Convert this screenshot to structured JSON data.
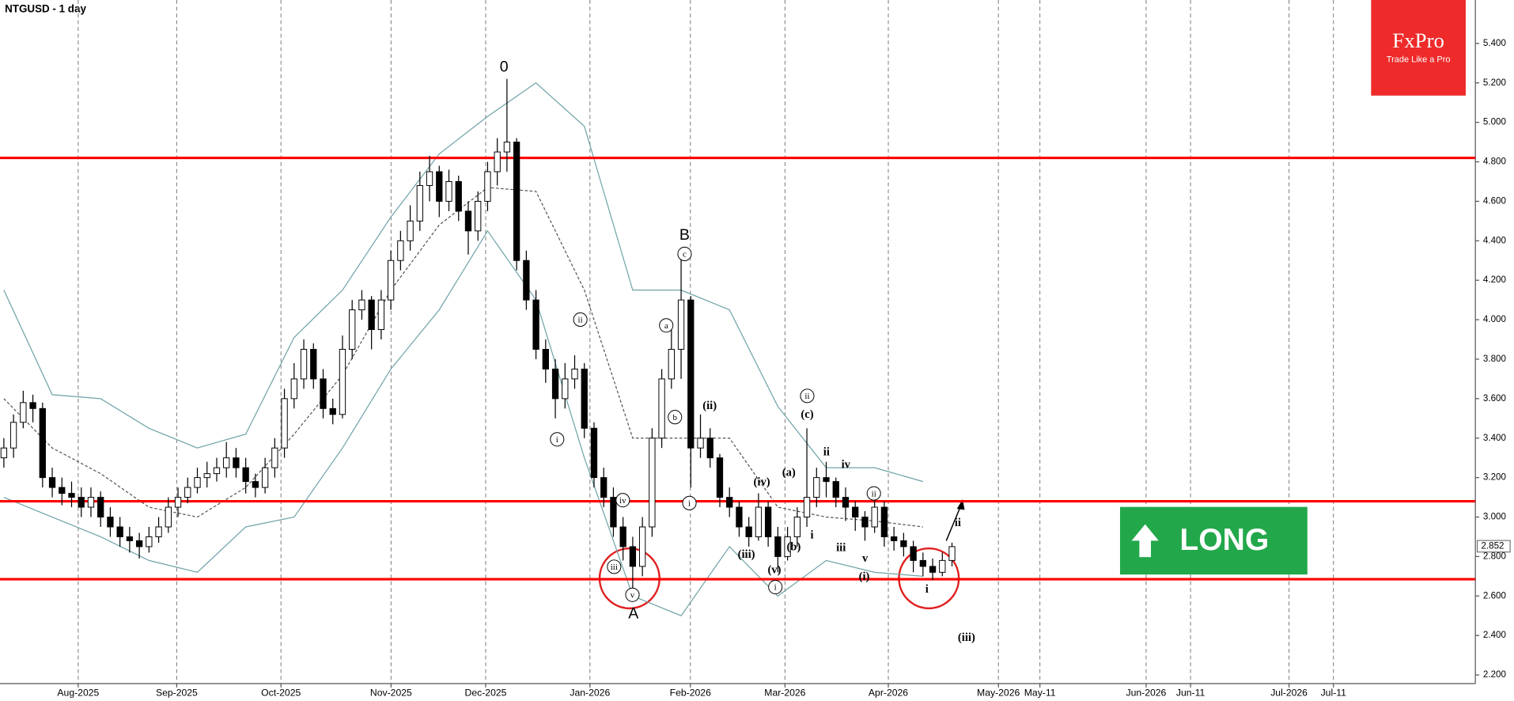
{
  "chart_data": {
    "type": "candlestick",
    "title": "NTGUSD - 1 day",
    "ylim": [
      2.156,
      5.62
    ],
    "yticks": [
      {
        "value": 2.2,
        "label": "2.200"
      },
      {
        "value": 2.4,
        "label": "2.400"
      },
      {
        "value": 2.6,
        "label": "2.600"
      },
      {
        "value": 2.8,
        "label": "2.800"
      },
      {
        "value": 3.0,
        "label": "3.000"
      },
      {
        "value": 3.2,
        "label": "3.200"
      },
      {
        "value": 3.4,
        "label": "3.400"
      },
      {
        "value": 3.6,
        "label": "3.600"
      },
      {
        "value": 3.8,
        "label": "3.800"
      },
      {
        "value": 4.0,
        "label": "4.000"
      },
      {
        "value": 4.2,
        "label": "4.200"
      },
      {
        "value": 4.4,
        "label": "4.400"
      },
      {
        "value": 4.6,
        "label": "4.600"
      },
      {
        "value": 4.8,
        "label": "4.800"
      },
      {
        "value": 5.0,
        "label": "5.000"
      },
      {
        "value": 5.2,
        "label": "5.200"
      },
      {
        "value": 5.4,
        "label": "5.400"
      }
    ],
    "xticks": [
      "Aug-2025",
      "Sep-2025",
      "Oct-2025",
      "Nov-2025",
      "Dec-2025",
      "Jan-2026",
      "Feb-2026",
      "Mar-2026",
      "Apr-2026",
      "May-2026",
      "May-11",
      "Jun-2026",
      "Jun-11",
      "Jul-2026",
      "Jul-11"
    ],
    "up_color": "#ffffff",
    "down_color": "#000000",
    "ohlc": [
      [
        3.3,
        3.4,
        3.25,
        3.35
      ],
      [
        3.35,
        3.52,
        3.3,
        3.48
      ],
      [
        3.48,
        3.64,
        3.45,
        3.58
      ],
      [
        3.58,
        3.62,
        3.48,
        3.55
      ],
      [
        3.55,
        3.58,
        3.15,
        3.2
      ],
      [
        3.2,
        3.25,
        3.1,
        3.15
      ],
      [
        3.15,
        3.2,
        3.06,
        3.12
      ],
      [
        3.12,
        3.18,
        3.05,
        3.1
      ],
      [
        3.1,
        3.15,
        3.0,
        3.05
      ],
      [
        3.05,
        3.15,
        3.0,
        3.1
      ],
      [
        3.1,
        3.13,
        2.95,
        3.0
      ],
      [
        3.0,
        3.05,
        2.9,
        2.95
      ],
      [
        2.95,
        3.0,
        2.85,
        2.9
      ],
      [
        2.9,
        2.95,
        2.82,
        2.88
      ],
      [
        2.88,
        2.92,
        2.79,
        2.85
      ],
      [
        2.85,
        2.95,
        2.82,
        2.9
      ],
      [
        2.9,
        3.0,
        2.87,
        2.95
      ],
      [
        2.95,
        3.1,
        2.92,
        3.05
      ],
      [
        3.05,
        3.15,
        3.0,
        3.1
      ],
      [
        3.1,
        3.2,
        3.07,
        3.15
      ],
      [
        3.15,
        3.25,
        3.12,
        3.2
      ],
      [
        3.2,
        3.28,
        3.15,
        3.22
      ],
      [
        3.22,
        3.3,
        3.18,
        3.25
      ],
      [
        3.25,
        3.38,
        3.2,
        3.3
      ],
      [
        3.3,
        3.35,
        3.2,
        3.25
      ],
      [
        3.25,
        3.3,
        3.12,
        3.18
      ],
      [
        3.18,
        3.22,
        3.1,
        3.15
      ],
      [
        3.15,
        3.3,
        3.12,
        3.25
      ],
      [
        3.25,
        3.4,
        3.2,
        3.35
      ],
      [
        3.35,
        3.65,
        3.3,
        3.6
      ],
      [
        3.6,
        3.78,
        3.55,
        3.7
      ],
      [
        3.7,
        3.9,
        3.65,
        3.85
      ],
      [
        3.85,
        3.88,
        3.65,
        3.7
      ],
      [
        3.7,
        3.75,
        3.5,
        3.55
      ],
      [
        3.55,
        3.6,
        3.47,
        3.52
      ],
      [
        3.52,
        3.92,
        3.5,
        3.85
      ],
      [
        3.85,
        4.1,
        3.8,
        4.05
      ],
      [
        4.05,
        4.15,
        4.0,
        4.1
      ],
      [
        4.1,
        4.12,
        3.85,
        3.95
      ],
      [
        3.95,
        4.15,
        3.9,
        4.1
      ],
      [
        4.1,
        4.35,
        4.05,
        4.3
      ],
      [
        4.3,
        4.45,
        4.25,
        4.4
      ],
      [
        4.4,
        4.58,
        4.35,
        4.5
      ],
      [
        4.5,
        4.75,
        4.45,
        4.68
      ],
      [
        4.68,
        4.83,
        4.6,
        4.75
      ],
      [
        4.75,
        4.78,
        4.52,
        4.6
      ],
      [
        4.6,
        4.76,
        4.55,
        4.7
      ],
      [
        4.7,
        4.73,
        4.5,
        4.55
      ],
      [
        4.55,
        4.6,
        4.33,
        4.45
      ],
      [
        4.45,
        4.65,
        4.4,
        4.6
      ],
      [
        4.6,
        4.8,
        4.55,
        4.75
      ],
      [
        4.75,
        4.92,
        4.68,
        4.85
      ],
      [
        4.85,
        5.22,
        4.75,
        4.9
      ],
      [
        4.9,
        4.92,
        4.25,
        4.3
      ],
      [
        4.3,
        4.35,
        4.05,
        4.1
      ],
      [
        4.1,
        4.15,
        3.8,
        3.85
      ],
      [
        3.85,
        3.9,
        3.68,
        3.75
      ],
      [
        3.75,
        3.8,
        3.5,
        3.6
      ],
      [
        3.6,
        3.78,
        3.55,
        3.7
      ],
      [
        3.7,
        3.82,
        3.65,
        3.75
      ],
      [
        3.75,
        3.78,
        3.4,
        3.45
      ],
      [
        3.45,
        3.48,
        3.15,
        3.2
      ],
      [
        3.2,
        3.25,
        3.05,
        3.1
      ],
      [
        3.1,
        3.15,
        2.9,
        2.95
      ],
      [
        2.95,
        3.0,
        2.78,
        2.85
      ],
      [
        2.85,
        2.9,
        2.62,
        2.75
      ],
      [
        2.75,
        3.0,
        2.7,
        2.95
      ],
      [
        2.95,
        3.45,
        2.9,
        3.4
      ],
      [
        3.4,
        3.75,
        3.35,
        3.7
      ],
      [
        3.7,
        3.95,
        3.65,
        3.85
      ],
      [
        3.85,
        4.32,
        3.7,
        4.1
      ],
      [
        4.1,
        4.12,
        3.15,
        3.35
      ],
      [
        3.35,
        3.52,
        3.3,
        3.4
      ],
      [
        3.4,
        3.45,
        3.25,
        3.3
      ],
      [
        3.3,
        3.32,
        3.05,
        3.1
      ],
      [
        3.1,
        3.15,
        3.0,
        3.05
      ],
      [
        3.05,
        3.08,
        2.9,
        2.95
      ],
      [
        2.95,
        3.0,
        2.85,
        2.9
      ],
      [
        2.9,
        3.12,
        2.88,
        3.05
      ],
      [
        3.05,
        3.08,
        2.85,
        2.9
      ],
      [
        2.9,
        2.95,
        2.72,
        2.8
      ],
      [
        2.8,
        2.95,
        2.78,
        2.9
      ],
      [
        2.9,
        3.05,
        2.85,
        3.0
      ],
      [
        3.0,
        3.45,
        2.95,
        3.1
      ],
      [
        3.1,
        3.25,
        3.05,
        3.2
      ],
      [
        3.2,
        3.28,
        3.1,
        3.18
      ],
      [
        3.18,
        3.2,
        3.05,
        3.1
      ],
      [
        3.1,
        3.15,
        2.98,
        3.05
      ],
      [
        3.05,
        3.08,
        2.93,
        3.0
      ],
      [
        3.0,
        3.03,
        2.88,
        2.95
      ],
      [
        2.95,
        3.12,
        2.92,
        3.05
      ],
      [
        3.05,
        3.08,
        2.85,
        2.9
      ],
      [
        2.9,
        2.95,
        2.83,
        2.88
      ],
      [
        2.88,
        2.92,
        2.8,
        2.85
      ],
      [
        2.85,
        2.88,
        2.72,
        2.78
      ],
      [
        2.78,
        2.82,
        2.7,
        2.75
      ],
      [
        2.75,
        2.79,
        2.68,
        2.72
      ],
      [
        2.72,
        2.82,
        2.7,
        2.78
      ],
      [
        2.78,
        2.87,
        2.75,
        2.85
      ]
    ],
    "bands": {
      "color": "#6fa3a8",
      "upper": [
        4.15,
        3.62,
        3.6,
        3.45,
        3.35,
        3.42,
        3.91,
        4.15,
        4.52,
        4.84,
        5.03,
        5.2,
        4.98,
        4.15,
        4.15,
        4.05,
        3.56,
        3.25,
        3.25,
        3.18
      ],
      "middle": [
        3.6,
        3.35,
        3.22,
        3.05,
        3.0,
        3.15,
        3.42,
        3.72,
        4.15,
        4.48,
        4.67,
        4.65,
        4.15,
        3.4,
        3.4,
        3.4,
        3.05,
        3.0,
        2.98,
        2.95
      ],
      "lower": [
        3.1,
        3.0,
        2.9,
        2.78,
        2.72,
        2.95,
        3.0,
        3.35,
        3.75,
        4.05,
        4.45,
        4.1,
        3.3,
        2.6,
        2.5,
        2.85,
        2.6,
        2.78,
        2.72,
        2.7
      ]
    },
    "levels": [
      4.82,
      3.08,
      2.685
    ],
    "level_color": "#ff0000",
    "last_price": 2.852,
    "wave_labels": [
      "0",
      "B",
      "c",
      "a",
      "b",
      "ii",
      "i",
      "iv",
      "iii",
      "v",
      "A",
      "(ii)",
      "i",
      "(iv)",
      "(a)",
      "(iii)",
      "(b)",
      "(v)",
      "i",
      "ii",
      "(c)",
      "ii",
      "iv",
      "i",
      "iii",
      "v",
      "ii",
      "(i)",
      "i",
      "ii",
      "(iii)"
    ],
    "signal": "LONG",
    "signal_color": "#22a84a"
  },
  "logo": {
    "brand": "FxPro",
    "tagline": "Trade Like a Pro"
  }
}
